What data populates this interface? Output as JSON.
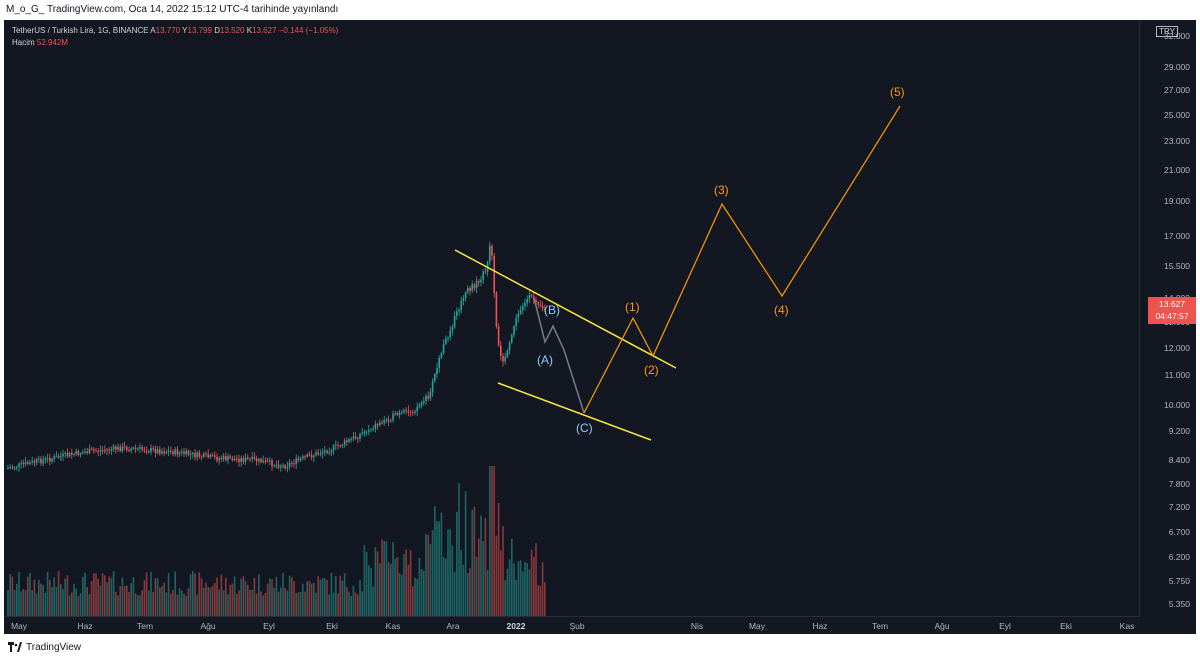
{
  "header": {
    "published": "M_o_G_ TradingView.com, Oca 14, 2022 15:12 UTC-4 tarihinde yayınlandı"
  },
  "legend": {
    "symbol": "TetherUS / Turkish Lira, 1G, BINANCE",
    "open_label": "A",
    "open": "13.770",
    "high_label": "Y",
    "high": "13.799",
    "low_label": "D",
    "low": "13.520",
    "close_label": "K",
    "close": "13.627",
    "change": "−0.144 (−1.05%)",
    "volume_label": "Hacim",
    "volume": "52.942M"
  },
  "price_axis": {
    "currency": "TRY",
    "ticks": [
      "32.000",
      "29.000",
      "27.000",
      "25.000",
      "23.000",
      "21.000",
      "19.000",
      "17.000",
      "15.500",
      "14.000",
      "13.000",
      "12.000",
      "11.000",
      "10.000",
      "9.200",
      "8.400",
      "7.800",
      "7.200",
      "6.700",
      "6.200",
      "5.750",
      "5.350"
    ],
    "current_price": "13.627",
    "countdown": "04:47:57"
  },
  "time_axis": {
    "ticks": [
      {
        "label": "May",
        "bold": false
      },
      {
        "label": "Haz",
        "bold": false
      },
      {
        "label": "Tem",
        "bold": false
      },
      {
        "label": "Ağu",
        "bold": false
      },
      {
        "label": "Eyl",
        "bold": false
      },
      {
        "label": "Eki",
        "bold": false
      },
      {
        "label": "Kas",
        "bold": false
      },
      {
        "label": "Ara",
        "bold": false
      },
      {
        "label": "2022",
        "bold": true
      },
      {
        "label": "Şub",
        "bold": false
      },
      {
        "label": "Nis",
        "bold": false
      },
      {
        "label": "May",
        "bold": false
      },
      {
        "label": "Haz",
        "bold": false
      },
      {
        "label": "Tem",
        "bold": false
      },
      {
        "label": "Ağu",
        "bold": false
      },
      {
        "label": "Eyl",
        "bold": false
      },
      {
        "label": "Eki",
        "bold": false
      },
      {
        "label": "Kas",
        "bold": false
      }
    ]
  },
  "annotations": {
    "correction_labels": [
      "(A)",
      "(B)",
      "(C)"
    ],
    "impulse_labels": [
      "(1)",
      "(2)",
      "(3)",
      "(4)",
      "(5)"
    ]
  },
  "colors": {
    "background": "#131722",
    "up": "#26a69a",
    "down": "#ef5350",
    "channel": "#ffeb3b",
    "impulse": "#ff9800",
    "correction_path": "#787b86",
    "correction_label": "#90caf9"
  },
  "footer": {
    "brand": "TradingView"
  }
}
